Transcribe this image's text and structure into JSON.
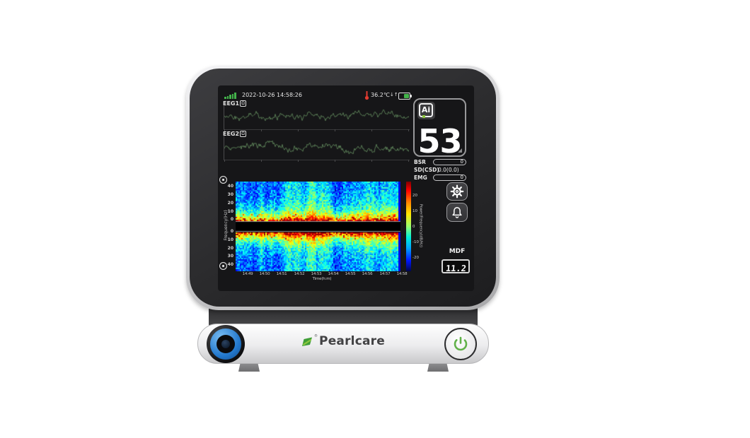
{
  "brand": {
    "name": "Pearlcare",
    "reg": "®"
  },
  "status_bar": {
    "datetime": "2022-10-26  14:58:26",
    "temperature": "36.2℃",
    "arrows": "↓↑"
  },
  "eeg": {
    "ch1_label": "EEG1",
    "ch2_label": "EEG2",
    "impedance_symbol": "Ω"
  },
  "ai_panel": {
    "badge": "Ai",
    "value": "53"
  },
  "metrics": {
    "bsr": {
      "label": "BSR",
      "value": "0"
    },
    "sd_csd": {
      "label": "SD(CSD)",
      "value": "0.0(0.0)"
    },
    "emg": {
      "label": "EMG",
      "value": "0"
    }
  },
  "mdf": {
    "label": "MDF",
    "value": "11.2"
  },
  "spectrogram": {
    "type": "heatmap",
    "description": "dual-channel density spectral array, mirrored halves",
    "ylabel": "Frequency(Hz)",
    "xlabel": "Time(h:m)",
    "y_ticks_top": [
      "40",
      "30",
      "20",
      "10",
      "0"
    ],
    "y_ticks_bottom": [
      "0",
      "10",
      "20",
      "30",
      "40"
    ],
    "x_ticks": [
      "14:49",
      "14:50",
      "14:51",
      "14:52",
      "14:53",
      "14:54",
      "14:55",
      "14:56",
      "14:57",
      "14:58"
    ],
    "colorbar": {
      "label": "Power/Frequency(dB/Hz)",
      "ticks": [
        "20",
        "10",
        "0",
        "-10",
        "-20"
      ]
    }
  },
  "icons": {
    "signal": "signal-bars-icon",
    "temperature": "thermometer-icon",
    "battery": "battery-icon",
    "settings": "gear-icon",
    "alarm": "bell-icon",
    "power": "power-icon",
    "logo": "leaf-icon"
  },
  "colors": {
    "accent_green": "#43b34a",
    "eeg_trace": "#597c55",
    "knob_blue": "#2277cc",
    "power_green": "#61b149"
  }
}
